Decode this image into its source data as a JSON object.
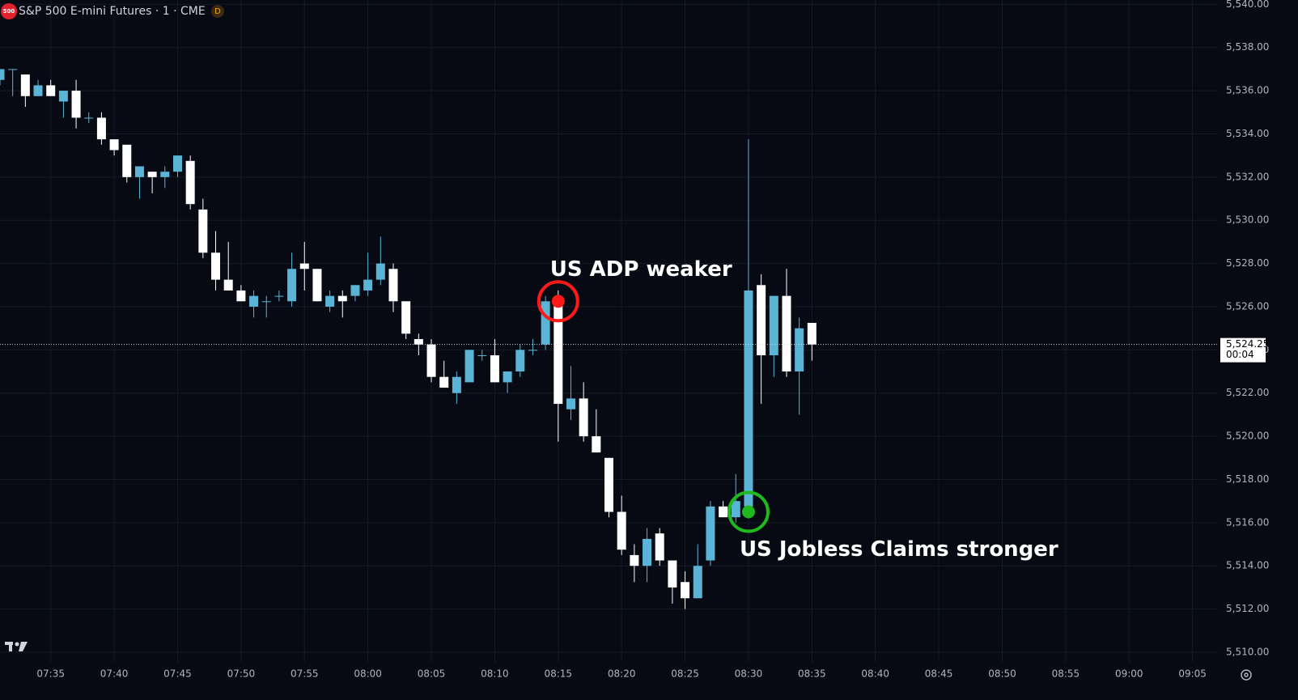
{
  "header": {
    "badge": "500",
    "title": "S&P 500 E-mini Futures · 1 · CME",
    "status": "D"
  },
  "chart_data": {
    "type": "candlestick",
    "x": [
      "07:31",
      "07:32",
      "07:33",
      "07:34",
      "07:35",
      "07:36",
      "07:37",
      "07:38",
      "07:39",
      "07:40",
      "07:41",
      "07:42",
      "07:43",
      "07:44",
      "07:45",
      "07:46",
      "07:47",
      "07:48",
      "07:49",
      "07:50",
      "07:51",
      "07:52",
      "07:53",
      "07:54",
      "07:55",
      "07:56",
      "07:57",
      "07:58",
      "07:59",
      "08:00",
      "08:01",
      "08:02",
      "08:03",
      "08:04",
      "08:05",
      "08:06",
      "08:07",
      "08:08",
      "08:09",
      "08:10",
      "08:11",
      "08:12",
      "08:13",
      "08:14",
      "08:15",
      "08:16",
      "08:17",
      "08:18",
      "08:19",
      "08:20",
      "08:21",
      "08:22",
      "08:23",
      "08:24",
      "08:25",
      "08:26",
      "08:27",
      "08:28",
      "08:29",
      "08:30",
      "08:31",
      "08:32",
      "08:33",
      "08:34",
      "08:35"
    ],
    "open": [
      5536.5,
      5537,
      5536.75,
      5535.75,
      5536.25,
      5535.5,
      5536,
      5534.75,
      5534.75,
      5533.75,
      5533.5,
      5532,
      5532.25,
      5532,
      5532.25,
      5532.75,
      5530.5,
      5528.5,
      5527.25,
      5526.75,
      5526,
      5526.25,
      5526.5,
      5526.25,
      5528,
      5527.75,
      5526,
      5526.5,
      5526.5,
      5526.75,
      5527.25,
      5527.75,
      5526.25,
      5524.5,
      5524.25,
      5522.75,
      5522,
      5522.5,
      5523.75,
      5523.75,
      5522.5,
      5523,
      5524,
      5524.25,
      5526.25,
      5521.25,
      5521.75,
      5520,
      5519,
      5516.5,
      5514.5,
      5514,
      5515.5,
      5514.25,
      5513.25,
      5512.5,
      5514.25,
      5516.75,
      5516.25,
      5516.75,
      5527,
      5523.75,
      5526.5,
      5523,
      5525.25
    ],
    "high": [
      5537,
      5537,
      5536.75,
      5536.5,
      5536.5,
      5536,
      5536.5,
      5535,
      5535,
      5533.75,
      5533.5,
      5532.5,
      5532.25,
      5532.5,
      5533,
      5533,
      5531,
      5529.5,
      5529,
      5527,
      5526.75,
      5526.5,
      5526.75,
      5528.5,
      5529,
      5527.75,
      5526.75,
      5526.75,
      5527,
      5528.5,
      5529.25,
      5528,
      5526.25,
      5524.75,
      5524.5,
      5523.5,
      5523,
      5524,
      5524,
      5524.5,
      5523,
      5524.25,
      5524.5,
      5526.5,
      5526.75,
      5523.25,
      5522.5,
      5521.25,
      5519,
      5517.25,
      5515,
      5515.75,
      5515.75,
      5514.25,
      5513.75,
      5515,
      5517,
      5517,
      5518.25,
      5533.75,
      5527.5,
      5526.5,
      5527.75,
      5525.5,
      5525.25
    ],
    "low": [
      5536.25,
      5535.75,
      5535.25,
      5535.75,
      5535.75,
      5534.75,
      5534.25,
      5534.5,
      5533.5,
      5533,
      5531.75,
      5531,
      5531.25,
      5531.5,
      5532,
      5530.5,
      5528.25,
      5526.75,
      5526.75,
      5526.25,
      5525.5,
      5525.5,
      5526.25,
      5526,
      5526.75,
      5526.25,
      5525.75,
      5525.5,
      5526.25,
      5526.5,
      5527,
      5525.75,
      5524.5,
      5523.75,
      5522.5,
      5522.25,
      5521.5,
      5522.5,
      5523.5,
      5522.5,
      5522,
      5522.75,
      5523.75,
      5524,
      5519.75,
      5520.75,
      5519.75,
      5519.25,
      5516.25,
      5514.5,
      5513.25,
      5513.25,
      5514,
      5512.25,
      5512,
      5512.5,
      5514,
      5516.25,
      5516,
      5516.5,
      5521.5,
      5522.75,
      5522.75,
      5521,
      5523.5
    ],
    "close": [
      5537,
      5537,
      5535.75,
      5536.25,
      5535.75,
      5536,
      5534.75,
      5534.75,
      5533.75,
      5533.25,
      5532,
      5532.5,
      5532,
      5532.25,
      5533,
      5530.75,
      5528.5,
      5527.25,
      5526.75,
      5526.25,
      5526.5,
      5526.25,
      5526.5,
      5527.75,
      5527.75,
      5526.25,
      5526.5,
      5526.25,
      5527,
      5527.25,
      5528,
      5526.25,
      5524.75,
      5524.25,
      5522.75,
      5522.25,
      5522.75,
      5524,
      5523.75,
      5522.5,
      5523,
      5524,
      5524,
      5526.25,
      5521.5,
      5521.75,
      5520,
      5519.25,
      5516.5,
      5514.75,
      5514,
      5515.25,
      5514.25,
      5513,
      5512.5,
      5514,
      5516.75,
      5516.25,
      5517,
      5526.75,
      5523.75,
      5526.5,
      5523,
      5525,
      5524.25
    ],
    "up_color": "#5ab4d6",
    "down_color": "#ffffff",
    "xlim": [
      "07:31",
      "09:07"
    ],
    "xticks": [
      "07:35",
      "07:40",
      "07:45",
      "07:50",
      "07:55",
      "08:00",
      "08:05",
      "08:10",
      "08:15",
      "08:20",
      "08:25",
      "08:30",
      "08:35",
      "08:40",
      "08:45",
      "08:50",
      "08:55",
      "09:00",
      "09:05"
    ],
    "ylim": [
      5509.55,
      5540.2
    ],
    "yticks": [
      {
        "value": 5510,
        "label": "5,510.00"
      },
      {
        "value": 5512,
        "label": "5,512.00"
      },
      {
        "value": 5514,
        "label": "5,514.00"
      },
      {
        "value": 5516,
        "label": "5,516.00"
      },
      {
        "value": 5518,
        "label": "5,518.00"
      },
      {
        "value": 5520,
        "label": "5,520.00"
      },
      {
        "value": 5522,
        "label": "5,522.00"
      },
      {
        "value": 5524,
        "label": "5,524.00"
      },
      {
        "value": 5526,
        "label": "5,526.00"
      },
      {
        "value": 5528,
        "label": "5,528.00"
      },
      {
        "value": 5530,
        "label": "5,530.00"
      },
      {
        "value": 5532,
        "label": "5,532.00"
      },
      {
        "value": 5534,
        "label": "5,534.00"
      },
      {
        "value": 5536,
        "label": "5,536.00"
      },
      {
        "value": 5538,
        "label": "5,538.00"
      },
      {
        "value": 5540,
        "label": "5,540.00"
      }
    ],
    "grid": true,
    "last_price": {
      "value": 5524.25,
      "label": "5,524.25"
    },
    "countdown": "00:04",
    "annotations": [
      {
        "text": "US ADP weaker",
        "x": "08:15",
        "y": 5526.25,
        "color": "#ff1a1a"
      },
      {
        "text": "US Jobless Claims stronger",
        "x": "08:30",
        "y": 5516.5,
        "color": "#1fb91f"
      }
    ]
  }
}
